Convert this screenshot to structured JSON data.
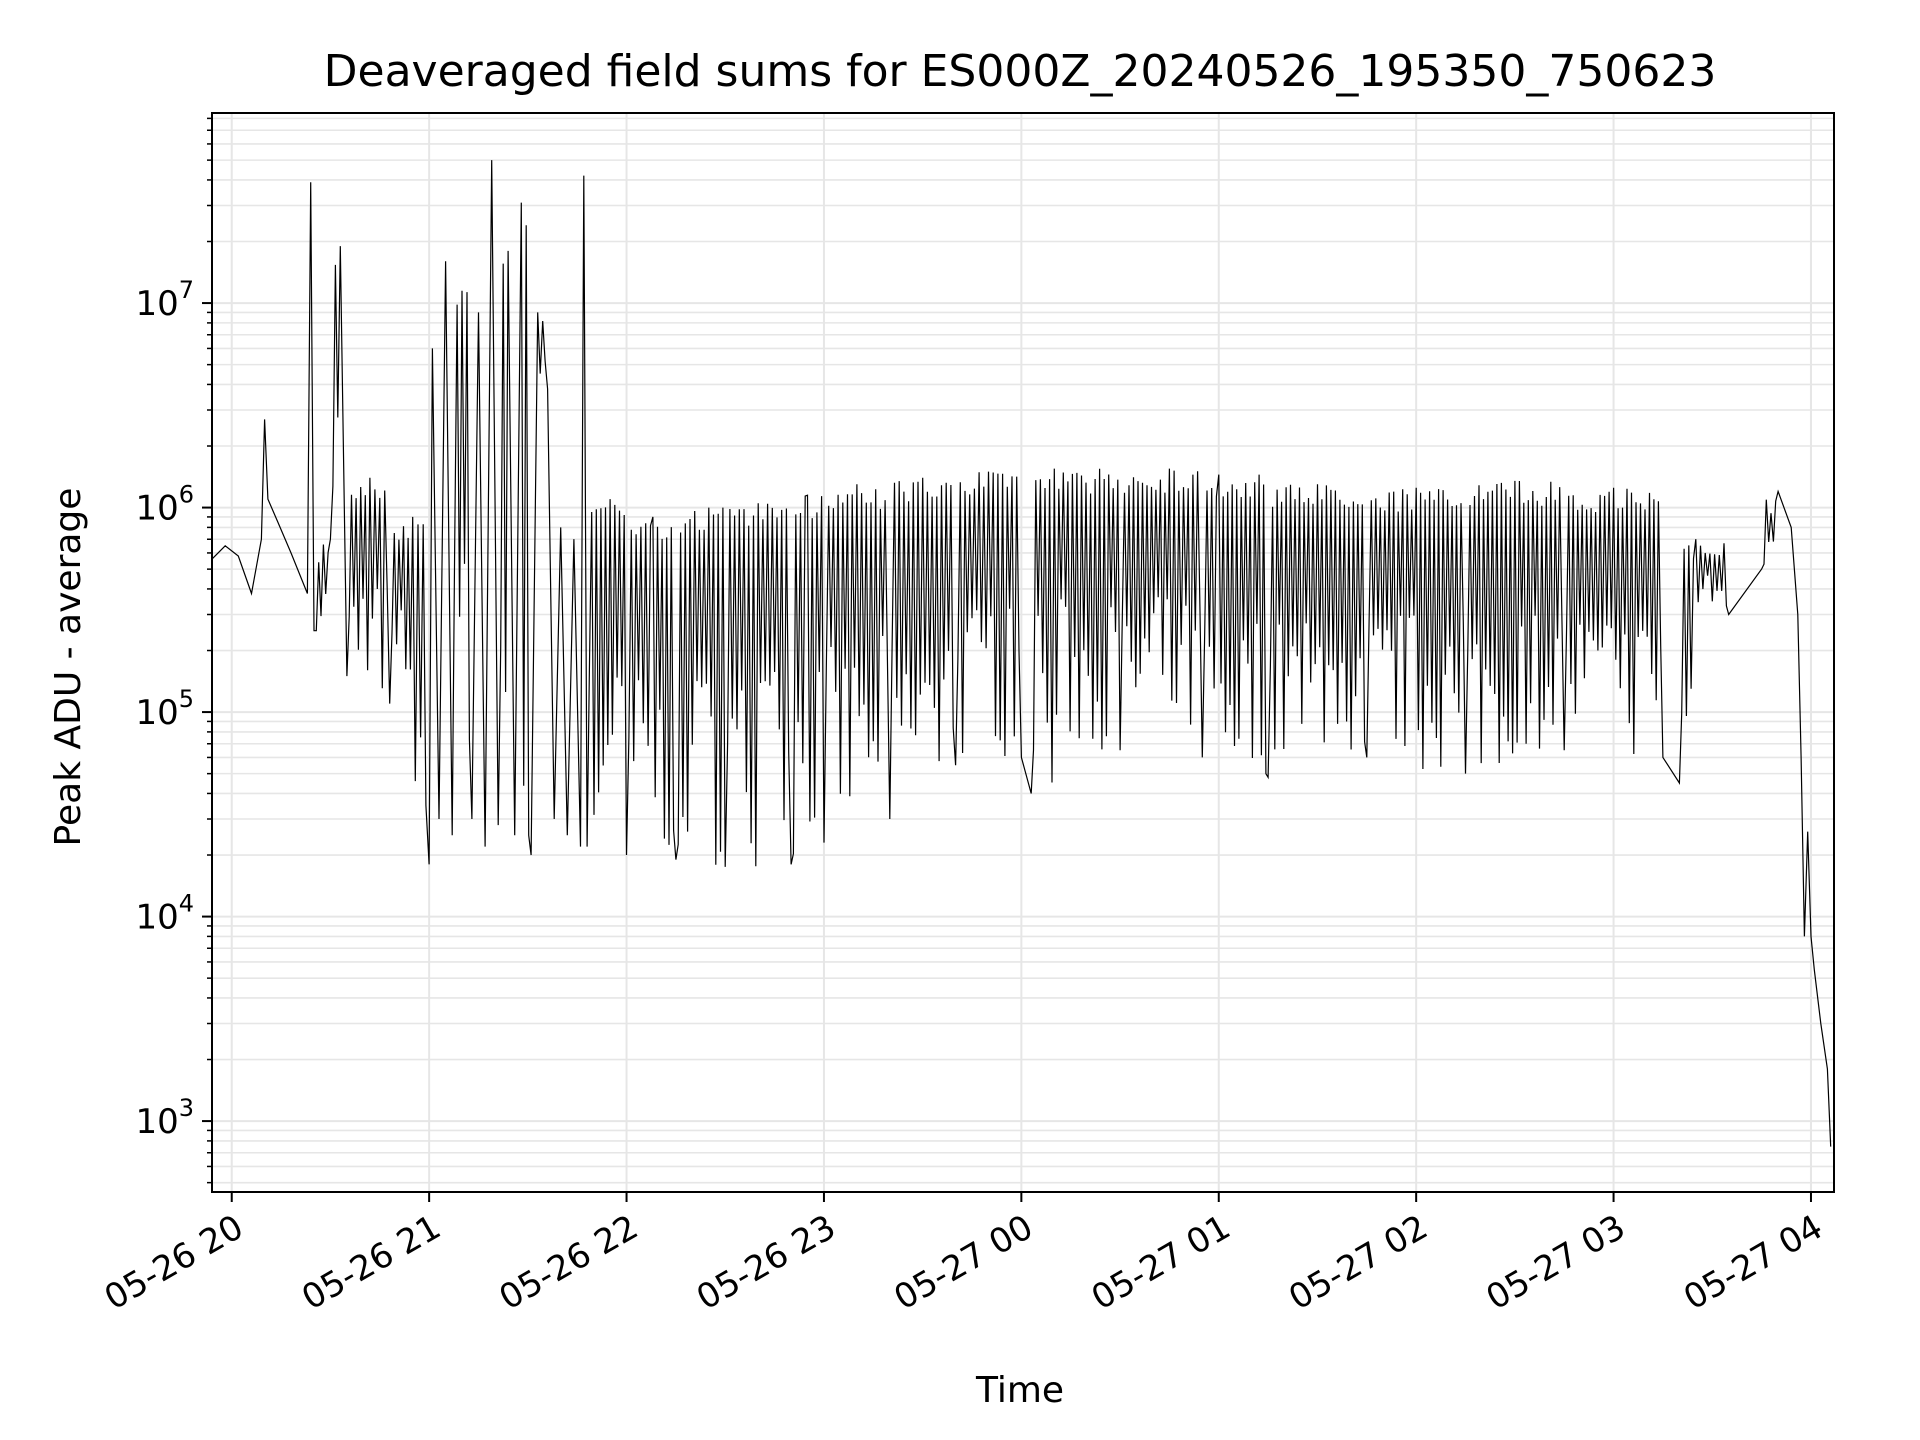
{
  "chart_data": {
    "type": "line",
    "title": "Deaveraged field sums for ES000Z_20240526_195350_750623",
    "xlabel": "Time",
    "ylabel": "Peak ADU - average",
    "x_axis_type": "datetime",
    "xlim": [
      "2024-05-26 19:54",
      "2024-05-27 04:07"
    ],
    "x_ticks": [
      {
        "time": "2024-05-26 20:00",
        "label": "05-26 20"
      },
      {
        "time": "2024-05-26 21:00",
        "label": "05-26 21"
      },
      {
        "time": "2024-05-26 22:00",
        "label": "05-26 22"
      },
      {
        "time": "2024-05-26 23:00",
        "label": "05-26 23"
      },
      {
        "time": "2024-05-27 00:00",
        "label": "05-27 00"
      },
      {
        "time": "2024-05-27 01:00",
        "label": "05-27 01"
      },
      {
        "time": "2024-05-27 02:00",
        "label": "05-27 02"
      },
      {
        "time": "2024-05-27 03:00",
        "label": "05-27 03"
      },
      {
        "time": "2024-05-27 04:00",
        "label": "05-27 04"
      }
    ],
    "y_scale": "log",
    "ylim": [
      450,
      85000000
    ],
    "y_ticks": [
      {
        "value": 1000,
        "base": "10",
        "exp": "3"
      },
      {
        "value": 10000,
        "base": "10",
        "exp": "4"
      },
      {
        "value": 100000,
        "base": "10",
        "exp": "5"
      },
      {
        "value": 1000000,
        "base": "10",
        "exp": "6"
      },
      {
        "value": 10000000,
        "base": "10",
        "exp": "7"
      }
    ],
    "grid": true,
    "line_color": "#000000",
    "grid_color": "#e6e6e6",
    "series": [
      {
        "name": "",
        "points": [
          [
            "2024-05-26 19:54",
            560000
          ],
          [
            "2024-05-26 19:58",
            650000
          ],
          [
            "2024-05-26 20:02",
            580000
          ],
          [
            "2024-05-26 20:06",
            380000
          ],
          [
            "2024-05-26 20:09",
            700000
          ],
          [
            "2024-05-26 20:10",
            2700000
          ],
          [
            "2024-05-26 20:11",
            1100000
          ],
          [
            "2024-05-26 20:14",
            850000
          ],
          [
            "2024-05-26 20:18",
            600000
          ],
          [
            "2024-05-26 20:23",
            380000
          ],
          [
            "2024-05-26 20:24",
            39000000
          ],
          [
            "2024-05-26 20:25",
            250000
          ],
          [
            "2024-05-26 20:30",
            700000
          ],
          [
            "2024-05-26 20:33",
            19000000
          ],
          [
            "2024-05-26 20:35",
            150000
          ],
          [
            "2024-05-26 20:42",
            1400000
          ],
          [
            "2024-05-26 20:48",
            110000
          ],
          [
            "2024-05-26 20:55",
            900000
          ],
          [
            "2024-05-26 20:59",
            35000
          ],
          [
            "2024-05-26 21:00",
            18000
          ],
          [
            "2024-05-26 21:01",
            6000000
          ],
          [
            "2024-05-26 21:03",
            30000
          ],
          [
            "2024-05-26 21:05",
            16000000
          ],
          [
            "2024-05-26 21:07",
            25000
          ],
          [
            "2024-05-26 21:10",
            11500000
          ],
          [
            "2024-05-26 21:13",
            30000
          ],
          [
            "2024-05-26 21:15",
            9000000
          ],
          [
            "2024-05-26 21:17",
            22000
          ],
          [
            "2024-05-26 21:19",
            50000000
          ],
          [
            "2024-05-26 21:21",
            28000
          ],
          [
            "2024-05-26 21:24",
            18000000
          ],
          [
            "2024-05-26 21:26",
            25000
          ],
          [
            "2024-05-26 21:28",
            31000000
          ],
          [
            "2024-05-26 21:31",
            20000
          ],
          [
            "2024-05-26 21:33",
            9000000
          ],
          [
            "2024-05-26 21:36",
            3800000
          ],
          [
            "2024-05-26 21:38",
            30000
          ],
          [
            "2024-05-26 21:40",
            800000
          ],
          [
            "2024-05-26 21:42",
            25000
          ],
          [
            "2024-05-26 21:44",
            700000
          ],
          [
            "2024-05-26 21:46",
            22000
          ],
          [
            "2024-05-26 21:47",
            42000000
          ],
          [
            "2024-05-26 21:48",
            22000
          ],
          [
            "2024-05-26 21:55",
            1100000
          ],
          [
            "2024-05-26 22:00",
            20000
          ],
          [
            "2024-05-26 22:08",
            900000
          ],
          [
            "2024-05-26 22:15",
            19000
          ],
          [
            "2024-05-26 22:25",
            1000000
          ],
          [
            "2024-05-26 22:30",
            17500
          ],
          [
            "2024-05-26 22:40",
            1050000
          ],
          [
            "2024-05-26 22:50",
            18000
          ],
          [
            "2024-05-26 22:55",
            1150000
          ],
          [
            "2024-05-26 23:00",
            23000
          ],
          [
            "2024-05-26 23:10",
            1300000
          ],
          [
            "2024-05-26 23:20",
            30000
          ],
          [
            "2024-05-26 23:30",
            1400000
          ],
          [
            "2024-05-26 23:40",
            55000
          ],
          [
            "2024-05-26 23:50",
            1500000
          ],
          [
            "2024-05-27 00:00",
            60000
          ],
          [
            "2024-05-27 00:03",
            40000
          ],
          [
            "2024-05-27 00:10",
            1550000
          ],
          [
            "2024-05-27 00:30",
            65000
          ],
          [
            "2024-05-27 00:45",
            1550000
          ],
          [
            "2024-05-27 00:55",
            60000
          ],
          [
            "2024-05-27 01:00",
            1450000
          ],
          [
            "2024-05-27 01:15",
            48000
          ],
          [
            "2024-05-27 01:30",
            1300000
          ],
          [
            "2024-05-27 01:45",
            60000
          ],
          [
            "2024-05-27 02:00",
            1250000
          ],
          [
            "2024-05-27 02:15",
            50000
          ],
          [
            "2024-05-27 02:30",
            1350000
          ],
          [
            "2024-05-27 02:45",
            65000
          ],
          [
            "2024-05-27 03:00",
            1250000
          ],
          [
            "2024-05-27 03:15",
            60000
          ],
          [
            "2024-05-27 03:20",
            45000
          ],
          [
            "2024-05-27 03:25",
            700000
          ],
          [
            "2024-05-27 03:35",
            300000
          ],
          [
            "2024-05-27 03:45",
            500000
          ],
          [
            "2024-05-27 03:50",
            1200000
          ],
          [
            "2024-05-27 03:54",
            800000
          ],
          [
            "2024-05-27 03:56",
            300000
          ],
          [
            "2024-05-27 03:57",
            60000
          ],
          [
            "2024-05-27 03:58",
            8000
          ],
          [
            "2024-05-27 03:59",
            26000
          ],
          [
            "2024-05-27 04:00",
            8000
          ],
          [
            "2024-05-27 04:01",
            5500
          ],
          [
            "2024-05-27 04:03",
            3000
          ],
          [
            "2024-05-27 04:05",
            1800
          ],
          [
            "2024-05-27 04:06",
            750
          ]
        ]
      }
    ]
  }
}
